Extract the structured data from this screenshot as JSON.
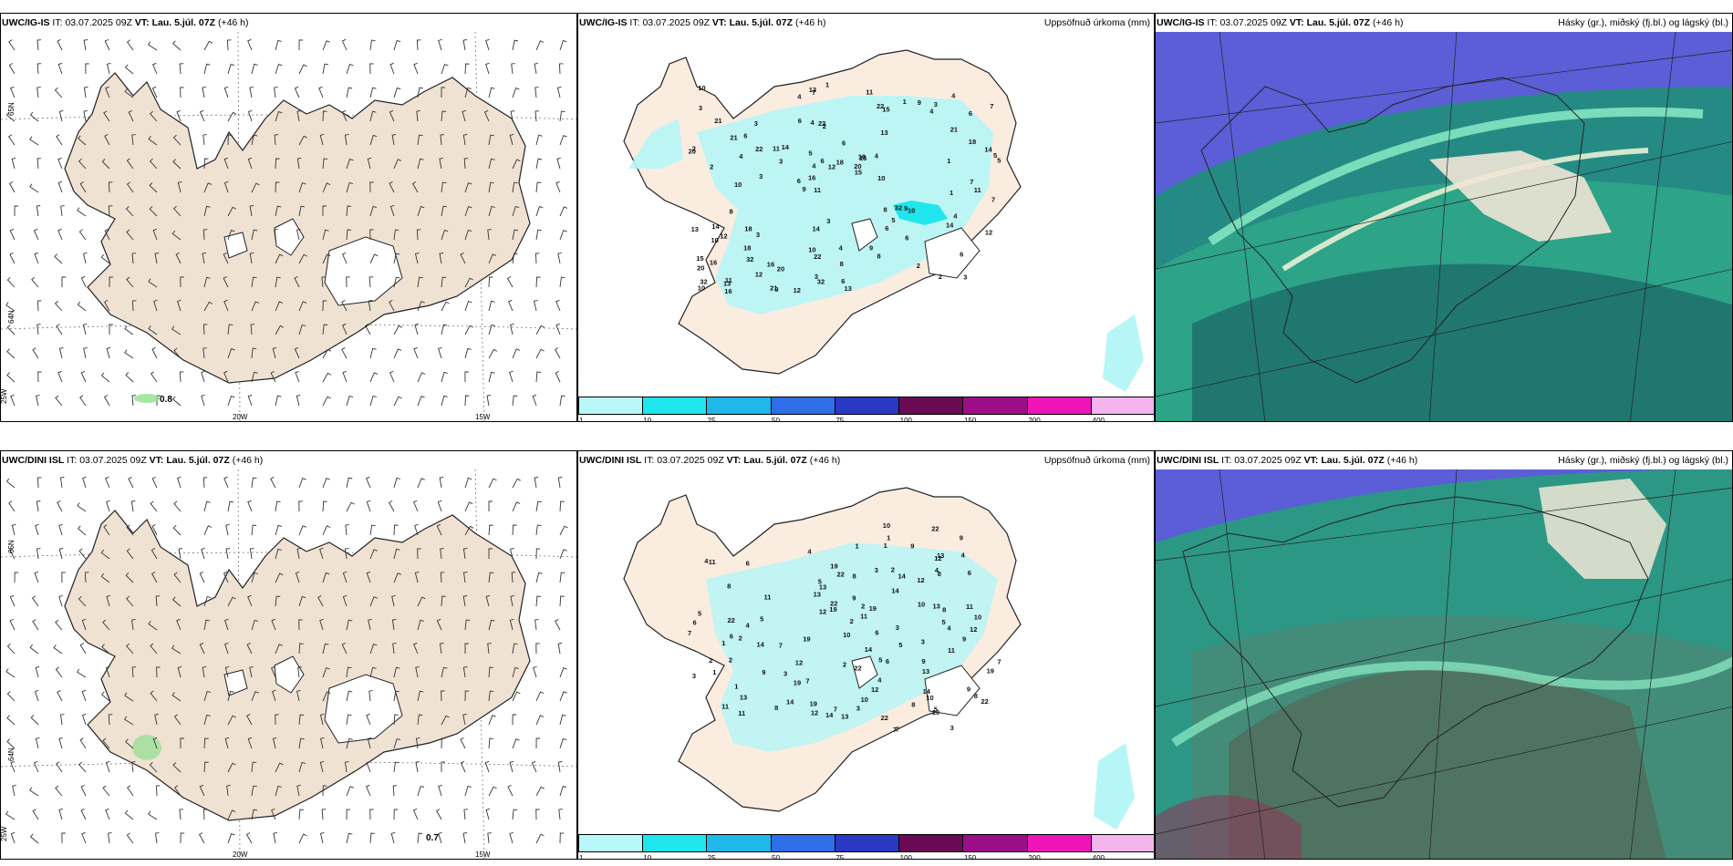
{
  "rows": [
    {
      "model": "UWC/IG-IS",
      "it_label": "IT:",
      "it_value": "03.07.2025 09Z",
      "vt_label": "VT: Lau. 5.júl. 07Z",
      "lead": "(+46 h)",
      "wind_value": "0.8"
    },
    {
      "model": "UWC/DINI ISL",
      "it_label": "IT:",
      "it_value": "03.07.2025 09Z",
      "vt_label": "VT: Lau. 5.júl. 07Z",
      "lead": "(+46 h)",
      "wind_value": "0.7"
    }
  ],
  "precip_title": "Uppsöfnuð úrkoma (mm)",
  "cloud_title": "Hásky (gr.), miðský (fj.bl.) og lágský (bl.)",
  "grid_labels": {
    "lat_top": "65N",
    "lat_bottom": "64N",
    "lon_left": "25W",
    "lon_mid": "20W",
    "lon_right": "15W"
  },
  "colorbar": {
    "labels": [
      "1",
      "10",
      "25",
      "50",
      "75",
      "100",
      "150",
      "200",
      "400"
    ],
    "colors": [
      "#b9f8f8",
      "#1fe6ec",
      "#1fb8e8",
      "#2e6ee6",
      "#2a39c4",
      "#6a0a54",
      "#9c0e86",
      "#ee14b8",
      "#f4b4ee"
    ]
  },
  "precip_top_numbers": [
    "3",
    "2",
    "6",
    "9",
    "13",
    "11",
    "4",
    "6",
    "12",
    "14",
    "20",
    "32",
    "22",
    "15",
    "10",
    "21",
    "7",
    "5",
    "8",
    "18",
    "16",
    "10",
    "4",
    "3",
    "1"
  ],
  "precip_bottom_numbers": [
    "3",
    "2",
    "5",
    "11",
    "9",
    "8",
    "13",
    "7",
    "12",
    "22",
    "14",
    "10",
    "19",
    "4",
    "6",
    "1"
  ],
  "colors": {
    "land": "#f0e2d2",
    "land_precip": "#fbece0",
    "precip_light": "#b6f6f6",
    "precip_mid": "#1fe6ec",
    "cloud_high": "#5b5ed6",
    "cloud_mid": "#1fae88",
    "cloud_low": "#6fe9c1"
  }
}
